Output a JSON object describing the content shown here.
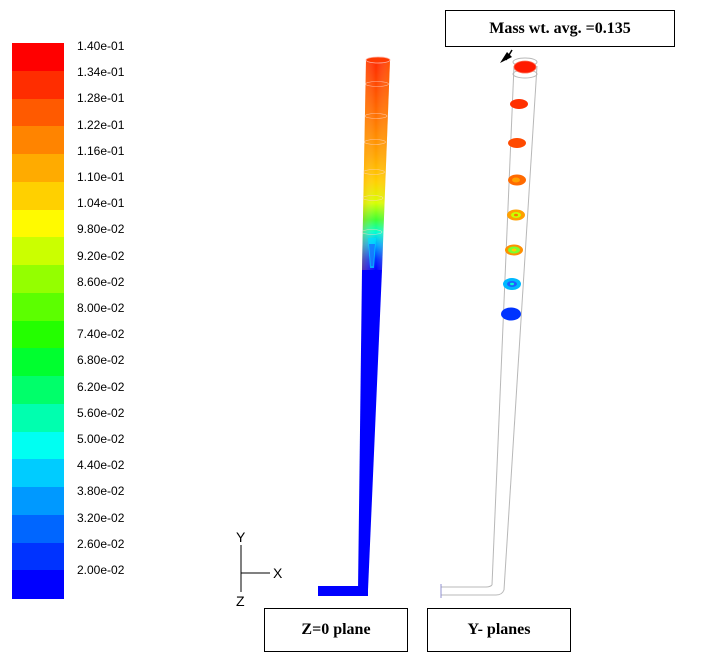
{
  "colorbar": {
    "ticks": [
      "1.40e-01",
      "1.34e-01",
      "1.28e-01",
      "1.22e-01",
      "1.16e-01",
      "1.10e-01",
      "1.04e-01",
      "9.80e-02",
      "9.20e-02",
      "8.60e-02",
      "8.00e-02",
      "7.40e-02",
      "6.80e-02",
      "6.20e-02",
      "5.60e-02",
      "5.00e-02",
      "4.40e-02",
      "3.80e-02",
      "3.20e-02",
      "2.60e-02",
      "2.00e-02"
    ],
    "colors": [
      "#ff0000",
      "#ff2d00",
      "#ff5a00",
      "#ff8400",
      "#ffab00",
      "#ffd000",
      "#fffa00",
      "#cbff00",
      "#94ff00",
      "#5cff00",
      "#24ff00",
      "#00ff2f",
      "#00ff6a",
      "#00ffaf",
      "#00fff2",
      "#00ccff",
      "#0099ff",
      "#0066ff",
      "#0033ff",
      "#0000ff"
    ]
  },
  "annotation": {
    "mass_avg": "Mass wt. avg. =0.135"
  },
  "axes": {
    "y": "Y",
    "x": "X",
    "z": "Z"
  },
  "labels": {
    "left": "Z=0 plane",
    "right": "Y- planes"
  }
}
